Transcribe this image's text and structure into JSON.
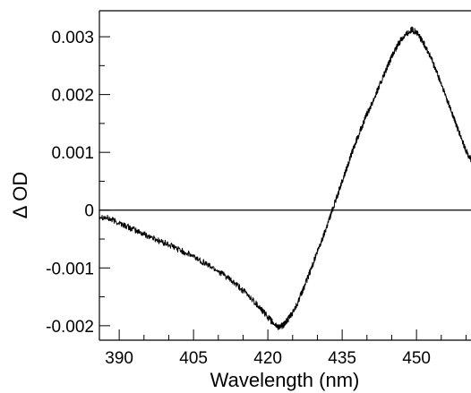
{
  "chart_data": {
    "type": "line",
    "title": "",
    "xlabel": "Wavelength (nm)",
    "ylabel": "Δ OD",
    "xlim": [
      386,
      461
    ],
    "ylim": [
      -0.00225,
      0.00345
    ],
    "x_ticks": [
      390,
      405,
      420,
      435,
      450
    ],
    "x_tick_labels": [
      "390",
      "405",
      "420",
      "435",
      "450"
    ],
    "y_ticks": [
      -0.002,
      -0.001,
      0,
      0.001,
      0.002,
      0.003
    ],
    "y_tick_labels": [
      "-0.002",
      "-0.001",
      "0",
      "0.001",
      "0.002",
      "0.003"
    ],
    "reference_line": {
      "y": 0
    },
    "grid": false,
    "legend": "none",
    "series": [
      {
        "color": "#000000",
        "x": [
          386,
          388,
          390,
          392,
          394,
          396,
          398,
          400,
          402,
          404,
          406,
          408,
          410,
          412,
          414,
          416,
          418,
          419,
          420,
          421,
          422,
          423,
          424,
          425,
          426,
          427,
          428,
          429,
          430,
          431,
          432,
          433,
          434,
          435,
          436,
          437,
          438,
          439,
          440,
          441,
          442,
          443,
          444,
          445,
          446,
          447,
          448,
          449,
          450,
          451,
          452,
          453,
          454,
          455,
          456,
          457,
          458,
          459,
          460,
          461
        ],
        "y": [
          -0.0001,
          -0.00015,
          -0.00022,
          -0.0003,
          -0.00038,
          -0.00045,
          -0.00053,
          -0.0006,
          -0.00068,
          -0.00076,
          -0.00085,
          -0.00095,
          -0.00105,
          -0.00118,
          -0.00132,
          -0.00147,
          -0.00165,
          -0.00175,
          -0.00185,
          -0.00195,
          -0.00202,
          -0.002,
          -0.0019,
          -0.00178,
          -0.0016,
          -0.0014,
          -0.00118,
          -0.00095,
          -0.00072,
          -0.0005,
          -0.00025,
          0,
          0.00025,
          0.0005,
          0.00075,
          0.001,
          0.00123,
          0.00145,
          0.00166,
          0.00185,
          0.00205,
          0.00225,
          0.00245,
          0.00265,
          0.00282,
          0.00297,
          0.00305,
          0.00312,
          0.00308,
          0.00295,
          0.0028,
          0.00262,
          0.0024,
          0.00218,
          0.00195,
          0.00172,
          0.00148,
          0.00125,
          0.00102,
          0.00088
        ]
      }
    ]
  }
}
